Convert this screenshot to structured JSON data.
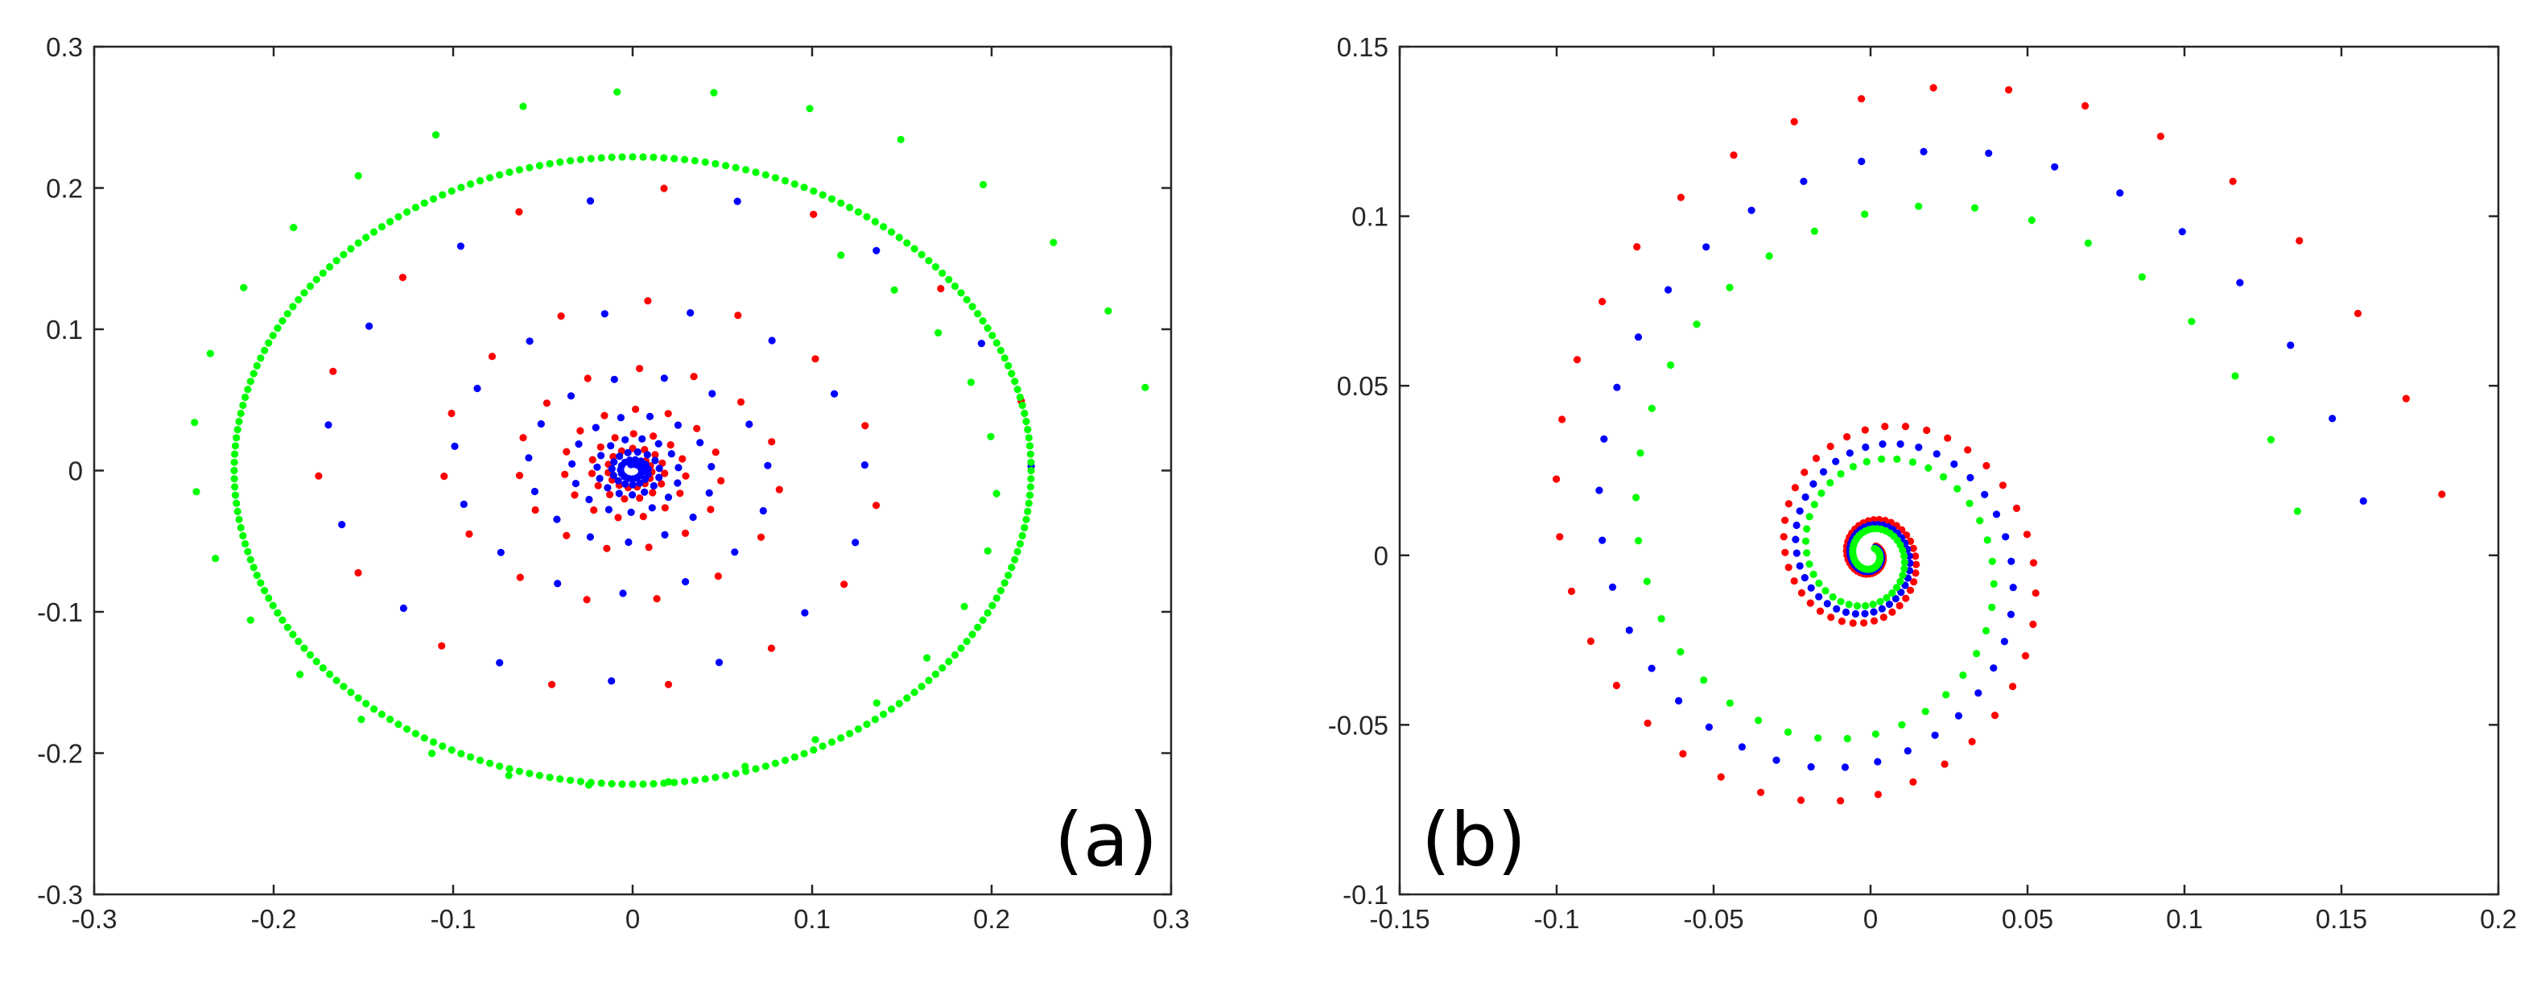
{
  "colors": {
    "red": "#ff0000",
    "blue": "#0000ff",
    "green": "#00ff00",
    "axis": "#262626"
  },
  "chart_data": [
    {
      "type": "scatter",
      "panel_label": "(a)",
      "xlim": [
        -0.3,
        0.3
      ],
      "ylim": [
        -0.3,
        0.3
      ],
      "x_ticks": [
        -0.3,
        -0.2,
        -0.1,
        0,
        0.1,
        0.2,
        0.3
      ],
      "x_tick_labels": [
        "-0.3",
        "-0.2",
        "-0.1",
        "0",
        "0.1",
        "0.2",
        "0.3"
      ],
      "y_ticks": [
        -0.3,
        -0.2,
        -0.1,
        0,
        0.1,
        0.2,
        0.3
      ],
      "y_tick_labels": [
        "-0.3",
        "-0.2",
        "-0.1",
        "0",
        "0.1",
        "0.2",
        "0.3"
      ],
      "legend": "none",
      "grid": false,
      "series": [
        {
          "name": "red",
          "color": "#ff0000",
          "kind": "spiral",
          "x0": 0.222,
          "y0": 0.003,
          "decay": 0.034,
          "dtheta": 0.42,
          "n": 92,
          "phase": 0.21,
          "xscale": 1.0,
          "yscale": 1.0,
          "center": [
            0,
            0
          ]
        },
        {
          "name": "blue",
          "color": "#0000ff",
          "kind": "spiral",
          "x0": 0.222,
          "y0": 0.003,
          "decay": 0.036,
          "dtheta": 0.42,
          "n": 110,
          "phase": 0.0,
          "xscale": 1.0,
          "yscale": 1.0,
          "center": [
            0,
            0
          ]
        },
        {
          "name": "green-orbit",
          "color": "#00ff00",
          "kind": "ellipse",
          "rx": 0.222,
          "ry": 0.222,
          "n": 240,
          "center": [
            0,
            0
          ]
        },
        {
          "name": "green-outer",
          "color": "#00ff00",
          "kind": "spiral",
          "x0": 0.29,
          "y0": 0.03,
          "decay": 0.012,
          "dtheta": 0.2,
          "n": 36,
          "phase": 0.1,
          "xscale": 1.0,
          "yscale": 1.0,
          "center": [
            0,
            0
          ]
        }
      ]
    },
    {
      "type": "scatter",
      "panel_label": "(b)",
      "xlim": [
        -0.15,
        0.2
      ],
      "ylim": [
        -0.1,
        0.15
      ],
      "x_ticks": [
        -0.15,
        -0.1,
        -0.05,
        0,
        0.05,
        0.1,
        0.15,
        0.2
      ],
      "x_tick_labels": [
        "-0.15",
        "-0.1",
        "-0.05",
        "0",
        "0.05",
        "0.1",
        "0.15",
        "0.2"
      ],
      "y_ticks": [
        -0.1,
        -0.05,
        0,
        0.05,
        0.1,
        0.15
      ],
      "y_tick_labels": [
        "-0.1",
        "-0.05",
        "0",
        "0.05",
        "0.1",
        "0.15"
      ],
      "legend": "none",
      "grid": false,
      "series": [
        {
          "name": "red",
          "color": "#ff0000",
          "kind": "spiral",
          "x0": 0.182,
          "y0": 0.018,
          "decay": 0.034,
          "dtheta": 0.166,
          "n": 120,
          "phase": 0.0,
          "xscale": 1.0,
          "yscale": 1.0,
          "center": [
            0,
            0
          ]
        },
        {
          "name": "blue",
          "color": "#0000ff",
          "kind": "spiral",
          "x0": 0.157,
          "y0": 0.016,
          "decay": 0.034,
          "dtheta": 0.166,
          "n": 120,
          "phase": 0.0,
          "xscale": 1.0,
          "yscale": 1.0,
          "center": [
            0,
            0
          ]
        },
        {
          "name": "green",
          "color": "#00ff00",
          "kind": "spiral",
          "x0": 0.136,
          "y0": 0.013,
          "decay": 0.034,
          "dtheta": 0.166,
          "n": 120,
          "phase": 0.0,
          "xscale": 1.0,
          "yscale": 1.0,
          "center": [
            0,
            0
          ]
        }
      ]
    }
  ]
}
